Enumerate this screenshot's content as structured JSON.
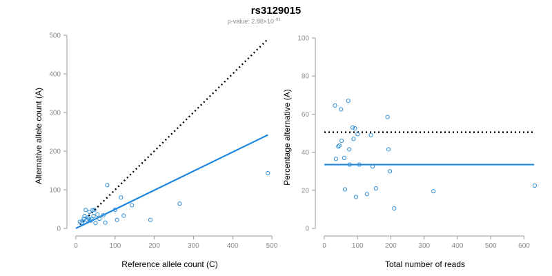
{
  "header": {
    "title": "rs3129015",
    "pvalue_prefix": "p-value: 2.88×10",
    "pvalue_exponent": "-91"
  },
  "colors": {
    "points": "#2f8fd8",
    "fit_line": "#1f86e0",
    "reference_line": "#000000",
    "axis": "#9a9a9a"
  },
  "chart_data": [
    {
      "type": "scatter",
      "name": "count-plot",
      "xlabel": "Reference allele count (C)",
      "ylabel": "Alternative allele count (A)",
      "xlim": [
        0,
        500
      ],
      "ylim": [
        0,
        500
      ],
      "xticks": [
        0,
        100,
        200,
        300,
        400,
        500
      ],
      "yticks": [
        0,
        100,
        200,
        300,
        400,
        500
      ],
      "points": [
        [
          10,
          17
        ],
        [
          15,
          15
        ],
        [
          18,
          20
        ],
        [
          20,
          25
        ],
        [
          22,
          32
        ],
        [
          25,
          48
        ],
        [
          28,
          22
        ],
        [
          30,
          28
        ],
        [
          33,
          25
        ],
        [
          35,
          43
        ],
        [
          38,
          20
        ],
        [
          40,
          24
        ],
        [
          42,
          47
        ],
        [
          45,
          32
        ],
        [
          47,
          48
        ],
        [
          50,
          14
        ],
        [
          55,
          36
        ],
        [
          60,
          25
        ],
        [
          70,
          34
        ],
        [
          75,
          15
        ],
        [
          80,
          112
        ],
        [
          100,
          48
        ],
        [
          105,
          22
        ],
        [
          115,
          80
        ],
        [
          122,
          33
        ],
        [
          143,
          60
        ],
        [
          190,
          22
        ],
        [
          265,
          64
        ],
        [
          490,
          143
        ]
      ],
      "reference_line": {
        "style": "dotted",
        "x": [
          10,
          490
        ],
        "y": [
          10,
          490
        ]
      },
      "fit_line": {
        "style": "solid",
        "x": [
          0,
          490
        ],
        "y": [
          0,
          242
        ]
      }
    },
    {
      "type": "scatter",
      "name": "percentage-plot",
      "xlabel": "Total number of reads",
      "ylabel": "Percentage alternative (A)",
      "xlim": [
        0,
        630
      ],
      "ylim": [
        0,
        100
      ],
      "xticks": [
        0,
        100,
        200,
        300,
        400,
        500,
        600
      ],
      "yticks": [
        0,
        20,
        40,
        60,
        80,
        100
      ],
      "points": [
        [
          32,
          64.5
        ],
        [
          35,
          36.5
        ],
        [
          42,
          43
        ],
        [
          45,
          43.5
        ],
        [
          50,
          62.5
        ],
        [
          52,
          46
        ],
        [
          60,
          37
        ],
        [
          62,
          20.5
        ],
        [
          72,
          67
        ],
        [
          75,
          41.5
        ],
        [
          76,
          33.5
        ],
        [
          85,
          53
        ],
        [
          88,
          47
        ],
        [
          92,
          52.5
        ],
        [
          95,
          16.5
        ],
        [
          100,
          49.5
        ],
        [
          105,
          33.5
        ],
        [
          128,
          18
        ],
        [
          140,
          49
        ],
        [
          145,
          32.5
        ],
        [
          155,
          21
        ],
        [
          190,
          58.5
        ],
        [
          193,
          41.5
        ],
        [
          197,
          30
        ],
        [
          210,
          10.5
        ],
        [
          328,
          19.5
        ],
        [
          632,
          22.5
        ]
      ],
      "reference_line": {
        "style": "dotted",
        "x": [
          0,
          630
        ],
        "y": [
          50.5,
          50.5
        ]
      },
      "fit_line": {
        "style": "solid",
        "x": [
          0,
          630
        ],
        "y": [
          33.5,
          33.5
        ]
      }
    }
  ]
}
